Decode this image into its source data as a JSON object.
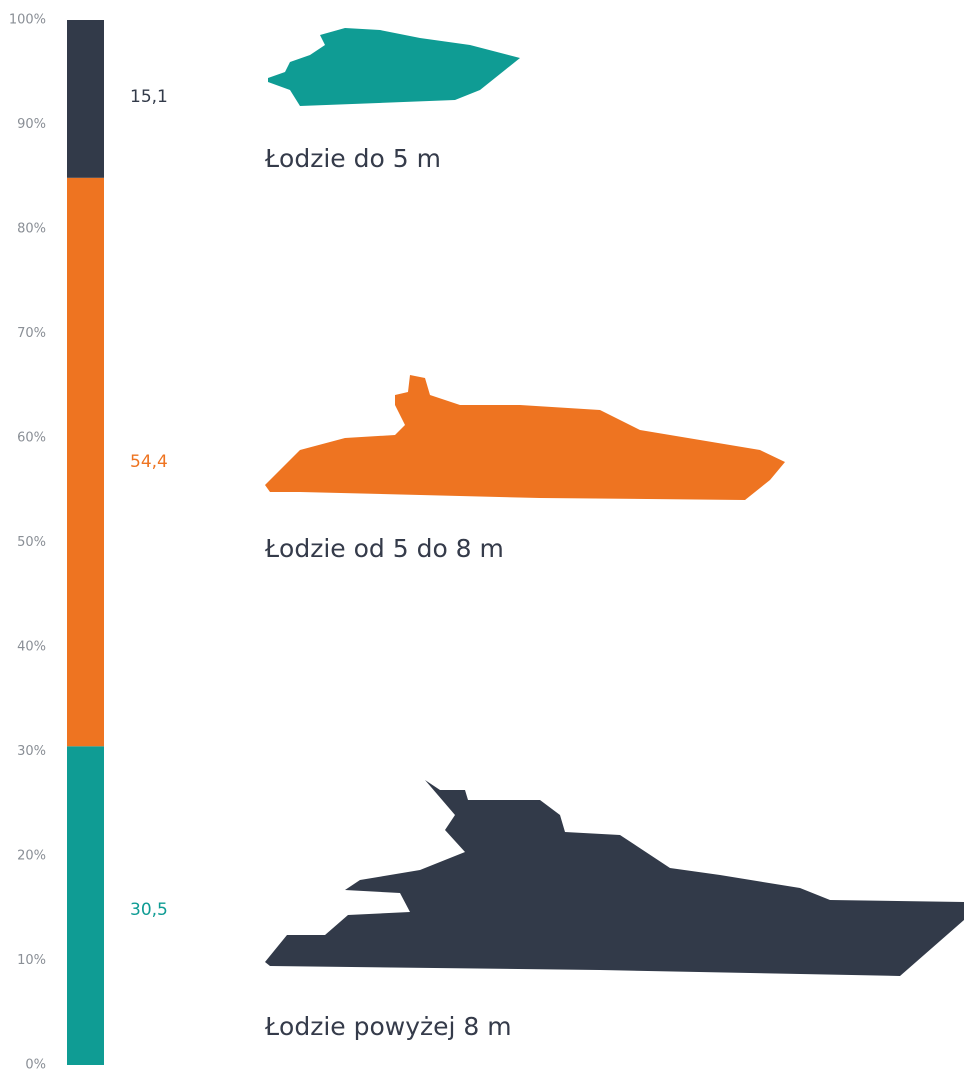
{
  "chart_data": {
    "type": "bar",
    "stacked": true,
    "series": [
      {
        "name": "Łodzie powyżej 8 m",
        "color": "#0f9c94",
        "values": [
          30.5
        ],
        "value_labels": [
          "30,5"
        ]
      },
      {
        "name": "Łodzie od  5 do 8 m",
        "color": "#ee7421",
        "values": [
          54.4
        ],
        "value_labels": [
          "54,4"
        ]
      },
      {
        "name": "Łodzie do 5 m",
        "color": "#323a49",
        "values": [
          15.1
        ],
        "value_labels": [
          "15,1"
        ]
      }
    ],
    "ylim": [
      0,
      100
    ],
    "yticks": [
      {
        "value": 0,
        "label": "0%"
      },
      {
        "value": 10,
        "label": "10%"
      },
      {
        "value": 20,
        "label": "20%"
      },
      {
        "value": 30,
        "label": "30%"
      },
      {
        "value": 40,
        "label": "40%"
      },
      {
        "value": 50,
        "label": "50%"
      },
      {
        "value": 60,
        "label": "60%"
      },
      {
        "value": 70,
        "label": "70%"
      },
      {
        "value": 80,
        "label": "80%"
      },
      {
        "value": 90,
        "label": "90%"
      },
      {
        "value": 100,
        "label": "100%"
      }
    ]
  }
}
